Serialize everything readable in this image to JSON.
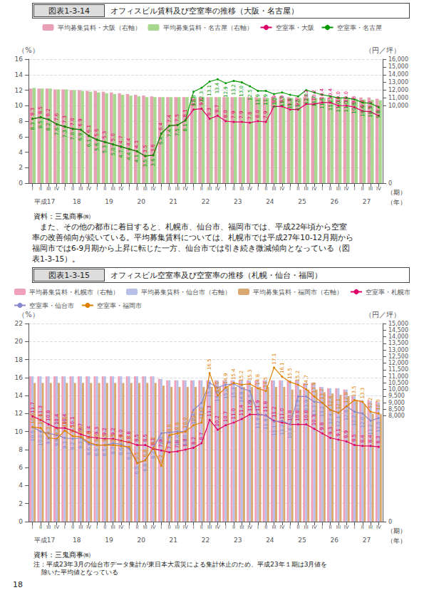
{
  "chart_data": [
    {
      "type": "bar",
      "figure_label": "図表1-3-14",
      "title": "オフィスビル賃料及び空室率の推移（大阪・名古屋）",
      "categories": [
        "I",
        "II",
        "III",
        "IV",
        "I",
        "II",
        "III",
        "IV",
        "I",
        "II",
        "III",
        "IV",
        "I",
        "II",
        "III",
        "IV",
        "I",
        "II",
        "III",
        "IV",
        "I",
        "II",
        "III",
        "IV",
        "I",
        "II",
        "III",
        "IV",
        "I",
        "II",
        "III",
        "IV",
        "I",
        "II",
        "III",
        "IV",
        "I",
        "II",
        "III",
        "IV",
        "I",
        "II",
        "III",
        "IV"
      ],
      "x_groups": [
        "平成17",
        "18",
        "19",
        "20",
        "21",
        "22",
        "23",
        "24",
        "25",
        "26",
        "27"
      ],
      "xlabel": "（期）",
      "x_group_label": "（年）",
      "ylabel": "（%）",
      "y2label": "（円／坪）",
      "ylim": [
        0,
        16
      ],
      "yticks": [
        0,
        2,
        4,
        6,
        8,
        10,
        12,
        14,
        16
      ],
      "y2lim": [
        0,
        16000
      ],
      "y2ticks": [
        0,
        {
          "value": 10000,
          "label": "10,000"
        },
        {
          "value": 11000,
          "label": "11,000"
        },
        {
          "value": 12000,
          "label": "12,000"
        },
        {
          "value": 13000,
          "label": "13,000"
        },
        {
          "value": 14000,
          "label": "14,000"
        },
        {
          "value": 15000,
          "label": "15,000"
        },
        {
          "value": 16000,
          "label": "16,000"
        }
      ],
      "grid": true,
      "legend": "upper center",
      "source": "資料：三鬼商事㈱",
      "series": [
        {
          "name": "平均募集賃料・大阪（右軸）",
          "type": "bar",
          "axis": "y2",
          "color": "#e8a0b4",
          "values": [
            12200,
            12200,
            12200,
            12100,
            12100,
            12000,
            12000,
            11900,
            11900,
            11800,
            11700,
            11600,
            11500,
            11400,
            11300,
            11200,
            11100,
            11100,
            11100,
            11100,
            11100,
            11100,
            11100,
            11100,
            11100,
            11100,
            11100,
            11100,
            11100,
            11100,
            11100,
            11100,
            11100,
            11100,
            11100,
            11100,
            11050,
            11050,
            11050,
            11050,
            11050,
            11050,
            11050,
            10900
          ]
        },
        {
          "name": "平均募集賃料・名古屋（右軸）",
          "type": "bar",
          "axis": "y2",
          "color": "#a8d890",
          "values": [
            12300,
            12200,
            12200,
            12100,
            12100,
            12000,
            11900,
            11800,
            11700,
            11600,
            11500,
            11400,
            11300,
            11200,
            11100,
            11100,
            11100,
            11100,
            11100,
            11100,
            11100,
            11100,
            11100,
            11100,
            11100,
            11100,
            11100,
            11100,
            11000,
            11000,
            11000,
            11000,
            11000,
            11000,
            11000,
            11000,
            11000,
            11000,
            11000,
            11000,
            10900,
            10800,
            10750,
            10700
          ]
        },
        {
          "name": "空室率・大阪",
          "type": "line",
          "color": "#dd0066",
          "marker": "circle",
          "data_labels": true,
          "values": [
            8.3,
            8.5,
            8.2,
            7.6,
            7.3,
            7.0,
            6.9,
            6.1,
            5.6,
            5.3,
            5.0,
            4.7,
            4.4,
            4.1,
            3.5,
            3.6,
            6.4,
            7.4,
            7.5,
            8.1,
            9.5,
            9.6,
            8.3,
            8.7,
            8.0,
            7.9,
            7.9,
            7.8,
            8.0,
            7.9,
            9.9,
            9.9,
            9.5,
            9.5,
            10.2,
            10.2,
            10.4,
            10.4,
            10.0,
            10.0,
            9.8,
            9.3,
            9.2,
            8.7
          ],
          "value_labels": [
            "8.3",
            "8.5",
            "8.2",
            "7.6",
            "7.3",
            "7.0",
            "6.9",
            "6.1",
            "5.6",
            "5.3",
            "5.0",
            "4.7",
            "4.4",
            "4.1",
            "3.5",
            "3.6",
            "6.4",
            "7.4",
            "7.5",
            "8.1",
            "9.5",
            "9.6",
            "8.3",
            "8.7",
            "8.0",
            "7.9",
            "7.9",
            "7.8",
            "8.0",
            "7.9",
            "9.9",
            "9.9",
            "9.5",
            "9.5",
            "10.2",
            "10.2",
            "10.4",
            "10.4",
            "10.0",
            "10.0",
            "9.8",
            "9.3",
            "9.2",
            "8.7"
          ]
        },
        {
          "name": "空室率・名古屋",
          "type": "line",
          "color": "#009900",
          "marker": "circle",
          "data_labels": true,
          "values": [
            8.3,
            8.5,
            8.2,
            7.6,
            7.3,
            7.0,
            6.9,
            6.1,
            5.6,
            5.3,
            5.0,
            4.7,
            4.4,
            4.1,
            3.5,
            3.6,
            6.4,
            7.4,
            7.5,
            8.1,
            11.8,
            12.3,
            13.1,
            13.4,
            12.9,
            13.2,
            13.0,
            12.5,
            11.9,
            11.9,
            11.5,
            11.7,
            11.4,
            11.2,
            12.0,
            11.7,
            11.4,
            11.2,
            11.0,
            11.0,
            10.8,
            10.4,
            10.3,
            9.8
          ],
          "value_labels": [
            "8.3",
            "8.5",
            "8.2",
            "7.6",
            "7.3",
            "7.0",
            "6.9",
            "6.1",
            "5.6",
            "5.3",
            "5.0",
            "4.7",
            "4.4",
            "4.1",
            "3.5",
            "3.6",
            "6.4",
            "7.4",
            "7.5",
            "8.1",
            "11.8",
            "12.3",
            "13.1",
            "13.4",
            "12.9",
            "13.2",
            "13.0",
            "12.5",
            "11.9",
            "11.9",
            "11.5",
            "11.7",
            "11.4",
            "11.2",
            "12.0",
            "11.7",
            "11.4",
            "11.2",
            "11.0",
            "11.0",
            "10.8",
            "10.4",
            "10.3",
            "9.8"
          ]
        }
      ]
    },
    {
      "type": "bar",
      "figure_label": "図表1-3-15",
      "title": "オフィスビル空室率及び空室率の推移（札幌・仙台・福岡）",
      "categories": [
        "I",
        "II",
        "III",
        "IV",
        "I",
        "II",
        "III",
        "IV",
        "I",
        "II",
        "III",
        "IV",
        "I",
        "II",
        "III",
        "IV",
        "I",
        "II",
        "III",
        "IV",
        "I",
        "II",
        "III",
        "IV",
        "I",
        "II",
        "III",
        "IV",
        "I",
        "II",
        "III",
        "IV",
        "I",
        "II",
        "III",
        "IV",
        "I",
        "II",
        "III",
        "IV",
        "I",
        "II",
        "III",
        "IV"
      ],
      "x_groups": [
        "平成17",
        "18",
        "19",
        "20",
        "21",
        "22",
        "23",
        "24",
        "25",
        "26",
        "27"
      ],
      "xlabel": "（期）",
      "x_group_label": "（年）",
      "ylabel": "（%）",
      "y2label": "（円／坪）",
      "ylim": [
        0,
        22
      ],
      "yticks": [
        0,
        2,
        4,
        6,
        8,
        10,
        12,
        14,
        16,
        18,
        20,
        22
      ],
      "y2lim": [
        0,
        15000
      ],
      "y2ticks": [
        0,
        {
          "value": 8000,
          "label": "8,000"
        },
        {
          "value": 8500,
          "label": "8,500"
        },
        {
          "value": 9000,
          "label": "9,000"
        },
        {
          "value": 9500,
          "label": "9,500"
        },
        {
          "value": 10000,
          "label": "10,000"
        },
        {
          "value": 10500,
          "label": "10,500"
        },
        {
          "value": 11000,
          "label": "11,000"
        },
        {
          "value": 11500,
          "label": "11,500"
        },
        {
          "value": 12000,
          "label": "12,000"
        },
        {
          "value": 12500,
          "label": "12,500"
        },
        {
          "value": 13000,
          "label": "13,000"
        },
        {
          "value": 13500,
          "label": "13,500"
        },
        {
          "value": 14000,
          "label": "14,000"
        },
        {
          "value": 14500,
          "label": "14,500"
        },
        {
          "value": 15000,
          "label": "15,000"
        }
      ],
      "grid": true,
      "legend": "upper center",
      "source": "資料：三鬼商事㈱",
      "notes": [
        "注：平成23年3月の仙台市データ集計が東日本大震災による集計休止のため、平成23年１期は3月値を",
        "    除いた平均値となっている"
      ],
      "series": [
        {
          "name": "平均募集賃料・札幌市（右軸）",
          "type": "bar",
          "axis": "y2",
          "color": "#f0a0b8",
          "values": [
            11000,
            11000,
            11000,
            11000,
            11000,
            11000,
            11000,
            11000,
            11000,
            11000,
            11000,
            11000,
            11000,
            11000,
            11000,
            11000,
            10800,
            10700,
            10700,
            10700,
            10700,
            10700,
            10700,
            10700,
            10700,
            10700,
            10700,
            10700,
            10700,
            10700,
            10700,
            10700,
            10700,
            10700,
            10500,
            10500,
            10200,
            10100,
            10100,
            10000,
            9500,
            9200,
            9200,
            9100
          ]
        },
        {
          "name": "平均募集賃料・仙台市（右軸）",
          "type": "bar",
          "axis": "y2",
          "color": "#b8c0e8",
          "values": [
            11000,
            11000,
            11000,
            11000,
            11000,
            11000,
            11000,
            11000,
            11000,
            11000,
            11000,
            11000,
            11000,
            11000,
            11000,
            11000,
            10800,
            10700,
            10700,
            10700,
            10700,
            10700,
            10700,
            10700,
            10700,
            10700,
            10700,
            10700,
            10700,
            10700,
            10700,
            10700,
            10700,
            10700,
            10500,
            10500,
            10200,
            10100,
            10100,
            10000,
            9500,
            9200,
            9144,
            9024
          ]
        },
        {
          "name": "平均募集賃料・福岡市（右軸）",
          "type": "bar",
          "axis": "y2",
          "color": "#d8a870",
          "values": [
            10500,
            10500,
            10500,
            10500,
            10500,
            10500,
            10500,
            10500,
            10500,
            10500,
            10500,
            10500,
            10500,
            10500,
            10500,
            10500,
            10300,
            10200,
            10200,
            10200,
            10200,
            10200,
            10200,
            10200,
            10200,
            10200,
            10200,
            10200,
            10200,
            10200,
            10200,
            10200,
            10000,
            10000,
            10000,
            10000,
            9800,
            9700,
            9600,
            9500,
            9200,
            8900,
            8155,
            8131
          ]
        },
        {
          "name": "空室率・札幌市",
          "type": "line",
          "color": "#dd0066",
          "marker": "circle",
          "data_labels": true,
          "values": [
            11.7,
            11.3,
            10.8,
            10.4,
            10.4,
            10.1,
            9.7,
            9.4,
            9.3,
            9.2,
            9.2,
            9.0,
            8.8,
            8.5,
            8.5,
            8.1,
            7.9,
            7.7,
            7.8,
            8.0,
            8.2,
            8.7,
            11.3,
            10.2,
            10.7,
            11.0,
            11.4,
            11.9,
            11.9,
            11.8,
            11.2,
            11.0,
            10.8,
            10.8,
            10.8,
            10.3,
            9.8,
            9.3,
            9.1,
            8.9,
            8.5,
            8.4,
            8.4,
            8.3
          ],
          "value_labels": [
            "11.7",
            "11.3",
            "10.8",
            "10.4",
            "10.4",
            "10.1",
            "9.7",
            "9.4",
            "9.3",
            "9.2",
            "9.2",
            "9.0",
            "8.8",
            "8.5",
            "8.5",
            "8.1",
            "7.9",
            "7.7",
            "7.8",
            "8.0",
            "8.2",
            "8.7",
            "11.3",
            "10.2",
            "10.7",
            "11.0",
            "11.4",
            "11.9",
            "11.9",
            "11.8",
            "11.2",
            "11.0",
            "10.8",
            "10.8",
            "10.8",
            "10.3",
            "9.8",
            "9.3",
            "9.1",
            "8.9",
            "8.5",
            "8.4",
            "8.4",
            "8.3"
          ]
        },
        {
          "name": "空室率・仙台市",
          "type": "line",
          "color": "#8888cc",
          "marker": "circle",
          "data_labels": true,
          "values": [
            10.5,
            10.0,
            9.8,
            9.6,
            9.3,
            9.2,
            9.3,
            8.6,
            8.5,
            8.5,
            8.7,
            8.6,
            8.1,
            6.5,
            6.8,
            8.2,
            9.8,
            9.9,
            10.0,
            10.0,
            12.4,
            13.2,
            15.4,
            14.9,
            15.2,
            15.3,
            14.8,
            14.5,
            11.9,
            11.8,
            11.1,
            11.2,
            10.8,
            13.9,
            13.9,
            13.3,
            13.2,
            12.4,
            12.1,
            12.8,
            12.2,
            12.0,
            11.2,
            11.5
          ],
          "value_labels": [
            "10.5",
            "10.0",
            "9.8",
            "9.6",
            "9.3",
            "9.2",
            "9.3",
            "8.6",
            "8.5",
            "8.5",
            "8.7",
            "8.6",
            "8.1",
            "6.5",
            "6.8",
            "8.2",
            "9.8",
            "9.9",
            "10.0",
            "10.0",
            "12.4",
            "13.2",
            "15.4",
            "14.9",
            "15.2",
            "15.3",
            "14.8",
            "14.5",
            "11.9",
            "11.8",
            "11.1",
            "11.2",
            "10.8",
            "13.9",
            "13.9",
            "13.3",
            "13.2",
            "12.4",
            "12.1",
            "12.8",
            "12.2",
            "12.0",
            "11.2",
            "11.5"
          ]
        },
        {
          "name": "空室率・福岡市",
          "type": "line",
          "color": "#e08000",
          "marker": "circle",
          "data_labels": true,
          "values": [
            10.5,
            10.4,
            9.3,
            9.2,
            10.1,
            9.5,
            9.4,
            8.8,
            8.5,
            8.5,
            8.5,
            8.4,
            8.3,
            6.5,
            6.8,
            8.2,
            6.2,
            9.6,
            9.8,
            10.0,
            10.7,
            11.0,
            16.5,
            14.0,
            14.9,
            15.4,
            15.2,
            15.3,
            14.8,
            14.5,
            17.1,
            16.1,
            15.5,
            15.2,
            14.7,
            13.9,
            13.2,
            12.4,
            12.1,
            12.8,
            13.5,
            13.3,
            12.2,
            12.0
          ],
          "value_labels": [
            "10.5",
            "10.4",
            "9.3",
            "9.2",
            "10.1",
            "9.5",
            "9.4",
            "8.8",
            "8.5",
            "8.5",
            "8.5",
            "8.4",
            "8.3",
            "6.5",
            "6.8",
            "8.2",
            "6.2",
            "9.6",
            "9.8",
            "10.0",
            "10.7",
            "11.0",
            "16.5",
            "14.0",
            "14.9",
            "15.4",
            "15.2",
            "15.3",
            "14.8",
            "14.5",
            "17.1",
            "16.1",
            "15.5",
            "15.2",
            "14.7",
            "13.9",
            "13.2",
            "12.4",
            "12.1",
            "12.8",
            "13.5",
            "13.3",
            "12.2",
            "12.0"
          ]
        }
      ]
    }
  ],
  "paragraph": [
    "　また、その他の都市に着目すると、札幌市、仙台市、福岡市では、平成22年頃から空室",
    "率の改善傾向が続いている。平均募集賃料については、札幌市では平成27年10-12月期から",
    "福岡市では6-9月期から上昇に転じた一方、仙台市では引き続き微減傾向となっている（図",
    "表1-3-15）。"
  ],
  "page_number": "18"
}
